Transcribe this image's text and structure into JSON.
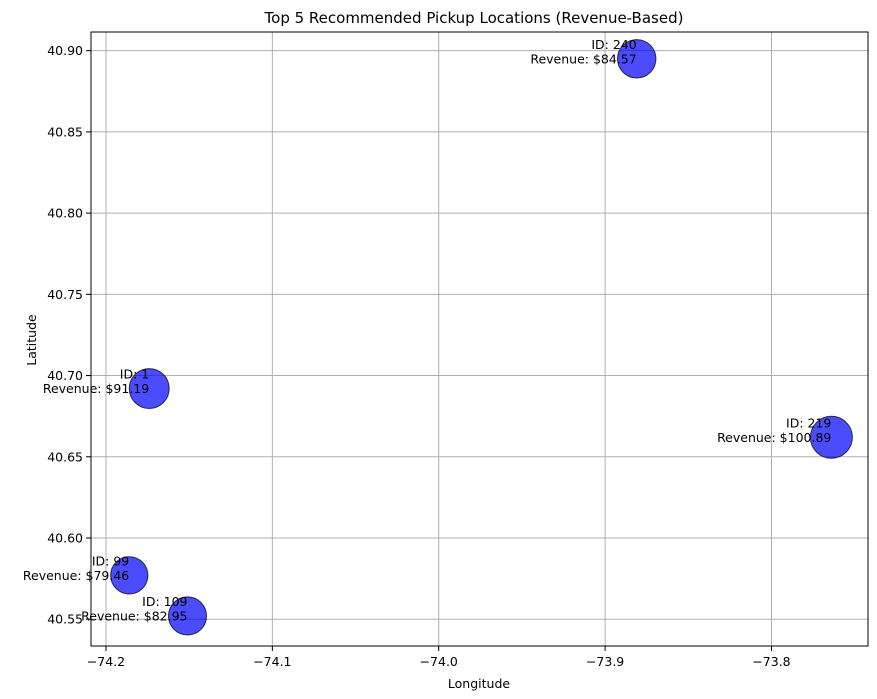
{
  "chart_data": {
    "type": "scatter",
    "title": "Top 5 Recommended Pickup Locations (Revenue-Based)",
    "xlabel": "Longitude",
    "ylabel": "Latitude",
    "xlim": [
      -74.209,
      -73.742
    ],
    "ylim": [
      40.5335,
      40.9115
    ],
    "xticks": [
      -74.2,
      -74.1,
      -74.0,
      -73.9,
      -73.8
    ],
    "xtick_labels": [
      "−74.2",
      "−74.1",
      "−74.0",
      "−73.9",
      "−73.8"
    ],
    "yticks": [
      40.55,
      40.6,
      40.65,
      40.7,
      40.75,
      40.8,
      40.85,
      40.9
    ],
    "ytick_labels": [
      "40.55",
      "40.60",
      "40.65",
      "40.70",
      "40.75",
      "40.80",
      "40.85",
      "40.90"
    ],
    "grid": true,
    "marker_color": "#0000ff",
    "marker_opacity": 0.7,
    "marker_edge_color": "#000000",
    "points": [
      {
        "id": 240,
        "id_label": "ID: 240",
        "revenue": 84.57,
        "revenue_label": "Revenue: $84.57",
        "x": -73.881,
        "y": 40.895
      },
      {
        "id": 1,
        "id_label": "ID: 1",
        "revenue": 91.19,
        "revenue_label": "Revenue: $91.19",
        "x": -74.174,
        "y": 40.692
      },
      {
        "id": 219,
        "id_label": "ID: 219",
        "revenue": 100.89,
        "revenue_label": "Revenue: $100.89",
        "x": -73.764,
        "y": 40.662
      },
      {
        "id": 99,
        "id_label": "ID: 99",
        "revenue": 79.46,
        "revenue_label": "Revenue: $79.46",
        "x": -74.186,
        "y": 40.577
      },
      {
        "id": 109,
        "id_label": "ID: 109",
        "revenue": 82.95,
        "revenue_label": "Revenue: $82.95",
        "x": -74.151,
        "y": 40.552
      }
    ]
  }
}
